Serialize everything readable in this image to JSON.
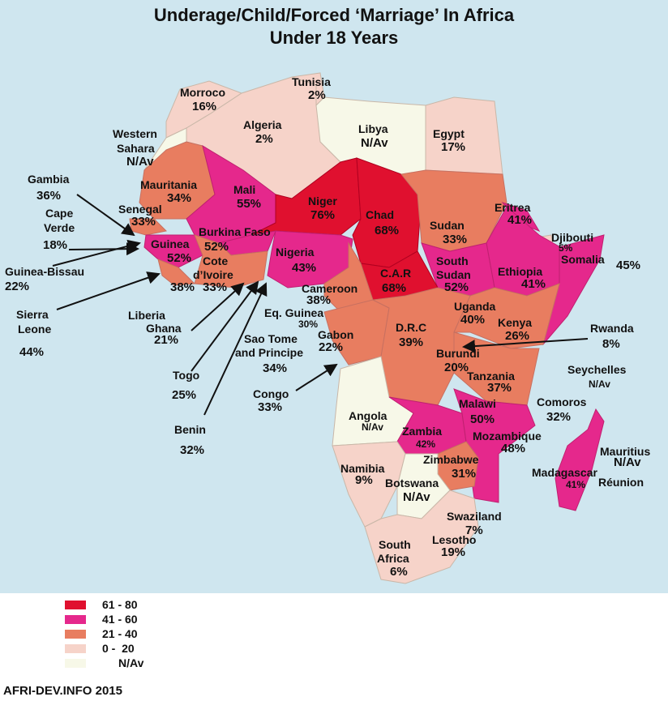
{
  "title_line1": "Underage/Child/Forced ‘Marriage’ In Africa",
  "title_line2": "Under 18 Years",
  "colors": {
    "band_61_80": "#e0102f",
    "band_41_60": "#e5288c",
    "band_21_40": "#e87d60",
    "band_0_20": "#f6d3c9",
    "na": "#f7f8e8",
    "sea": "#cfe6ef"
  },
  "countries": {
    "morroco": {
      "name": "Morroco",
      "pct": "16%"
    },
    "tunisia": {
      "name": "Tunisia",
      "pct": "2%"
    },
    "algeria": {
      "name": "Algeria",
      "pct": "2%"
    },
    "libya": {
      "name": "Libya",
      "pct": "N/Av"
    },
    "egypt": {
      "name": "Egypt",
      "pct": "17%"
    },
    "western_sahara": {
      "name1": "Western",
      "name2": "Sahara",
      "pct": "N/Av"
    },
    "mauritania": {
      "name": "Mauritania",
      "pct": "34%"
    },
    "mali": {
      "name": "Mali",
      "pct": "55%"
    },
    "niger": {
      "name": "Niger",
      "pct": "76%"
    },
    "chad": {
      "name": "Chad",
      "pct": "68%"
    },
    "sudan": {
      "name": "Sudan",
      "pct": "33%"
    },
    "eritrea": {
      "name": "Eritrea",
      "pct": "41%"
    },
    "djibouti": {
      "name": "Djibouti",
      "pct": "5%"
    },
    "somalia": {
      "name": "Somalia",
      "pct": "45%"
    },
    "ethiopia": {
      "name": "Ethiopia",
      "pct": "41%"
    },
    "south_sudan": {
      "name1": "South",
      "name2": "Sudan",
      "pct": "52%"
    },
    "car": {
      "name": "C.A.R",
      "pct": "68%"
    },
    "gambia": {
      "name": "Gambia",
      "pct": "36%"
    },
    "cape_verde": {
      "name1": "Cape",
      "name2": "Verde",
      "pct": "18%"
    },
    "senegal": {
      "name": "Senegal",
      "pct": "33%"
    },
    "guinea": {
      "name": "Guinea",
      "pct": "52%"
    },
    "burkina_faso": {
      "name": "Burkina Faso",
      "pct": "52%"
    },
    "nigeria": {
      "name": "Nigeria",
      "pct": "43%"
    },
    "guinea_bissau": {
      "name": "Guinea-Bissau",
      "pct": "22%"
    },
    "cote_divoire": {
      "name1": "Cote",
      "name2": "d’Ivoire",
      "pct": "33%"
    },
    "liberia": {
      "name": "Liberia",
      "pct": "38%"
    },
    "sierra_leone": {
      "name1": "Sierra",
      "name2": "Leone",
      "pct": "44%"
    },
    "ghana": {
      "name": "Ghana",
      "pct": "21%"
    },
    "cameroon": {
      "name": "Cameroon",
      "pct": "38%"
    },
    "eq_guinea": {
      "name": "Eq. Guinea",
      "pct": "30%"
    },
    "gabon": {
      "name": "Gabon",
      "pct": "22%"
    },
    "sao_tome": {
      "name1": "Sao Tome",
      "name2": "and Principe",
      "pct": "34%"
    },
    "togo": {
      "name": "Togo",
      "pct": "25%"
    },
    "congo": {
      "name": "Congo",
      "pct": "33%"
    },
    "benin": {
      "name": "Benin",
      "pct": "32%"
    },
    "drc": {
      "name": "D.R.C",
      "pct": "39%"
    },
    "uganda": {
      "name": "Uganda",
      "pct": "40%"
    },
    "kenya": {
      "name": "Kenya",
      "pct": "26%"
    },
    "rwanda": {
      "name": "Rwanda",
      "pct": "8%"
    },
    "burundi": {
      "name": "Burundi",
      "pct": "20%"
    },
    "tanzania": {
      "name": "Tanzania",
      "pct": "37%"
    },
    "seychelles": {
      "name": "Seychelles",
      "pct": "N/Av"
    },
    "comoros": {
      "name": "Comoros",
      "pct": "32%"
    },
    "angola": {
      "name": "Angola",
      "pct": "N/Av"
    },
    "malawi": {
      "name": "Malawi",
      "pct": "50%"
    },
    "zambia": {
      "name": "Zambia",
      "pct": "42%"
    },
    "mozambique": {
      "name": "Mozambique",
      "pct": "48%"
    },
    "mauritius": {
      "name": "Mauritius",
      "pct": "N/Av"
    },
    "zimbabwe": {
      "name": "Zimbabwe",
      "pct": "31%"
    },
    "namibia": {
      "name": "Namibia",
      "pct": "9%"
    },
    "botswana": {
      "name": "Botswana",
      "pct": "N/Av"
    },
    "madagascar": {
      "name": "Madagascar",
      "pct": "41%"
    },
    "reunion": {
      "name": "Réunion"
    },
    "swaziland": {
      "name": "Swaziland",
      "pct": "7%"
    },
    "lesotho": {
      "name": "Lesotho",
      "pct": "19%"
    },
    "south_africa": {
      "name1": "South",
      "name2": "Africa",
      "pct": "6%"
    }
  },
  "legend": [
    {
      "label": "61 - 80",
      "color": "#e0102f"
    },
    {
      "label": "41 - 60",
      "color": "#e5288c"
    },
    {
      "label": "21 - 40",
      "color": "#e87d60"
    },
    {
      "label": "0 -  20",
      "color": "#f6d3c9"
    },
    {
      "label": "N/Av",
      "color": "#f7f8e8"
    }
  ],
  "footer": "AFRI-DEV.INFO 2015"
}
